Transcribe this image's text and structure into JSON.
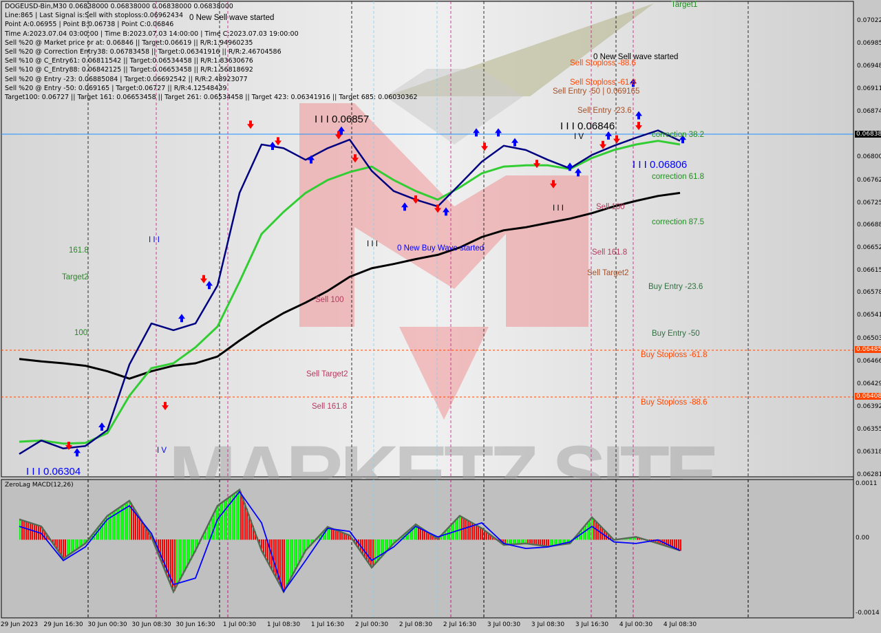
{
  "header": {
    "symbol_line": "DOGEUSD-Bin,M30  0.06838000 0.06838000 0.06838000 0.06838000",
    "info_lines": [
      "Line:865 | Last Signal is:Sell with stoploss:0.06962434",
      "Point A:0.06955 | Point B:0.06738 | Point C:0.06846",
      "Time A:2023.07.04 03:00:00 | Time B:2023.07.03 14:00:00 | Time C:2023.07.03 19:00:00",
      "Sell %20 @ Market price or at: 0.06846 || Target:0.06619 || R/R:1.94960235",
      "Sell %20 @ Correction Entry38: 0.06783458 || Target:0.06341916 || R/R:2.46704586",
      "Sell %10 @ C_Entry61: 0.06811542 || Target:0.06534458 || R/R:1.83630676",
      "Sell %10 @ C_Entry88: 0.06842125 || Target:0.06653458 || R/R:1.56818692",
      "Sell %20 @ Entry -23: 0.06885084 | Target:0.06692542 || R/R:2.48923077",
      "Sell %20 @ Entry -50: 0.069165 | Target:0.06727 || R/R:4.12548439",
      "Target100: 0.06727 || Target 161: 0.06653458 || Target 261: 0.06534458 || Target 423: 0.06341916 || Target 685: 0.06030362"
    ]
  },
  "annotations": {
    "sell_wave_1": "0 New Sell wave started",
    "target1": "Target1",
    "sell_wave_2": "0 New Sell wave started",
    "sell_sl_886": "Sell Stoploss -88.6",
    "sell_sl_618": "Sell Stoploss -61.8",
    "sell_entry_50": "Sell Entry -50 | 0.069165",
    "sell_entry_236": "Sell Entry -23.6",
    "wave_c": "I I I 0.06846",
    "wave_iv": "I V",
    "corr_382": "correction 38.2",
    "wave_b": "I I I 0.06806",
    "corr_618": "correction 61.8",
    "sell_100_r": "Sell 100",
    "corr_875": "correction 87.5",
    "sell_1618_r": "Sell 161.8",
    "sell_target2_r": "Sell Target2",
    "buy_entry_236": "Buy Entry -23.6",
    "buy_entry_50": "Buy Entry -50",
    "buy_sl_618": "Buy Stoploss -61.8",
    "buy_sl_886": "Buy Stoploss -88.6",
    "wave_a": "I I I 0.06857",
    "wave_iii_mid": "I I I",
    "buy_wave": "0 New Buy Wave started",
    "wave_iii_left": "I I I",
    "l_1618": "161.8",
    "l_target2": "Target2",
    "l_100": "100",
    "sell_100_m": "Sell 100",
    "sell_target2_m": "Sell Target2",
    "sell_1618_m": "Sell 161.8",
    "wave_low": "I I I 0.06304",
    "wave_iv_low": "I V",
    "wave_iii_right": "I I I",
    "watermark": "MARKETZ SITE"
  },
  "colors": {
    "fast_line": "#000080",
    "mid_line": "#32cd32",
    "slow_line": "#000000",
    "sell_arrow": "#ff0000",
    "buy_arrow": "#0000ff",
    "current_price": "#1e90ff",
    "stoploss_line": "#ff4500",
    "macd_up": "#00ff00",
    "macd_down": "#ff0000",
    "macd_signal": "#0000ff"
  },
  "chart_data": [
    {
      "type": "line",
      "title": "DOGEUSD-Bin,M30",
      "ylim": [
        0.06281,
        0.07022
      ],
      "price_ticks": [
        "0.07022",
        "0.06985",
        "0.06948",
        "0.06911",
        "0.06874",
        "0.06800",
        "0.06762",
        "0.06725",
        "0.06688",
        "0.06652",
        "0.06615",
        "0.06578",
        "0.06541",
        "0.06503",
        "0.06466",
        "0.06429",
        "0.06392",
        "0.06355",
        "0.06318",
        "0.06281"
      ],
      "current_price": "0.06838",
      "stoploss_levels": [
        "0.06485",
        "0.06408"
      ],
      "x": [
        "06-29 08:30",
        "06-29 12:30",
        "06-29 16:30",
        "06-29 20:30",
        "06-30 00:30",
        "06-30 04:30",
        "06-30 08:30",
        "06-30 12:30",
        "06-30 16:30",
        "06-30 20:30",
        "07-01 00:30",
        "07-01 04:30",
        "07-01 08:30",
        "07-01 12:30",
        "07-01 16:30",
        "07-01 20:30",
        "07-02 00:30",
        "07-02 04:30",
        "07-02 08:30",
        "07-02 12:30",
        "07-02 16:30",
        "07-02 20:30",
        "07-03 00:30",
        "07-03 04:30",
        "07-03 08:30",
        "07-03 12:30",
        "07-03 16:30",
        "07-03 20:30",
        "07-04 00:30",
        "07-04 04:30",
        "07-04 08:30"
      ],
      "series": [
        {
          "values": [
            0.06316,
            0.06338,
            0.06325,
            0.06329,
            0.06355,
            0.06462,
            0.06529,
            0.06518,
            0.06529,
            0.06591,
            0.06742,
            0.06821,
            0.06815,
            0.06796,
            0.06815,
            0.06829,
            0.06778,
            0.06745,
            0.06731,
            0.0672,
            0.06756,
            0.06793,
            0.06819,
            0.06812,
            0.06796,
            0.06782,
            0.06804,
            0.06819,
            0.06832,
            0.06844,
            0.06827
          ]
        },
        {
          "values": [
            0.06336,
            0.06338,
            0.06333,
            0.06334,
            0.0635,
            0.06411,
            0.06456,
            0.06464,
            0.0649,
            0.06524,
            0.06597,
            0.06675,
            0.06711,
            0.06742,
            0.06763,
            0.06776,
            0.06785,
            0.06763,
            0.06745,
            0.06731,
            0.06751,
            0.06774,
            0.06785,
            0.06787,
            0.06787,
            0.06781,
            0.06799,
            0.06812,
            0.06821,
            0.06827,
            0.06821
          ]
        },
        {
          "values": [
            0.06471,
            0.06467,
            0.06464,
            0.0646,
            0.06451,
            0.06439,
            0.06451,
            0.0646,
            0.06464,
            0.06475,
            0.06501,
            0.06525,
            0.06546,
            0.06563,
            0.06582,
            0.06605,
            0.06619,
            0.06626,
            0.06634,
            0.06641,
            0.06653,
            0.0667,
            0.06681,
            0.06686,
            0.06693,
            0.067,
            0.06709,
            0.0672,
            0.06729,
            0.06737,
            0.06742
          ]
        }
      ],
      "signals": [
        {
          "type": "sell",
          "time": "06-29 17:30",
          "price": 0.06327
        },
        {
          "type": "buy",
          "time": "06-29 19:00",
          "price": 0.06321
        },
        {
          "type": "buy",
          "time": "06-29 23:30",
          "price": 0.06363
        },
        {
          "type": "sell",
          "time": "06-30 11:00",
          "price": 0.06392
        },
        {
          "type": "buy",
          "time": "06-30 14:00",
          "price": 0.0654
        },
        {
          "type": "sell",
          "time": "06-30 18:00",
          "price": 0.06599
        },
        {
          "type": "buy",
          "time": "06-30 19:00",
          "price": 0.06594
        },
        {
          "type": "sell",
          "time": "07-01 02:30",
          "price": 0.06851
        },
        {
          "type": "buy",
          "time": "07-01 06:30",
          "price": 0.06821
        },
        {
          "type": "sell",
          "time": "07-01 07:30",
          "price": 0.06824
        },
        {
          "type": "buy",
          "time": "07-01 13:30",
          "price": 0.06799
        },
        {
          "type": "sell",
          "time": "07-01 18:30",
          "price": 0.06834
        },
        {
          "type": "buy",
          "time": "07-01 19:00",
          "price": 0.06846
        },
        {
          "type": "sell",
          "time": "07-01 21:30",
          "price": 0.06796
        },
        {
          "type": "buy",
          "time": "07-02 06:30",
          "price": 0.06722
        },
        {
          "type": "sell",
          "time": "07-02 08:30",
          "price": 0.06729
        },
        {
          "type": "sell",
          "time": "07-02 12:30",
          "price": 0.06714
        },
        {
          "type": "buy",
          "time": "07-02 14:00",
          "price": 0.06714
        },
        {
          "type": "buy",
          "time": "07-02 19:30",
          "price": 0.06843
        },
        {
          "type": "sell",
          "time": "07-02 21:00",
          "price": 0.06815
        },
        {
          "type": "buy",
          "time": "07-02 23:30",
          "price": 0.06843
        },
        {
          "type": "buy",
          "time": "07-03 02:30",
          "price": 0.06827
        },
        {
          "type": "sell",
          "time": "07-03 06:30",
          "price": 0.06787
        },
        {
          "type": "sell",
          "time": "07-03 09:30",
          "price": 0.06754
        },
        {
          "type": "buy",
          "time": "07-03 12:30",
          "price": 0.06787
        },
        {
          "type": "buy",
          "time": "07-03 14:00",
          "price": 0.06778
        },
        {
          "type": "sell",
          "time": "07-03 18:30",
          "price": 0.06818
        },
        {
          "type": "buy",
          "time": "07-03 19:30",
          "price": 0.06838
        },
        {
          "type": "sell",
          "time": "07-03 21:00",
          "price": 0.06827
        },
        {
          "type": "buy",
          "time": "07-04 00:00",
          "price": 0.06924
        },
        {
          "type": "buy",
          "time": "07-04 01:00",
          "price": 0.06871
        },
        {
          "type": "sell",
          "time": "07-04 01:00",
          "price": 0.06849
        },
        {
          "type": "buy",
          "time": "07-04 09:00",
          "price": 0.06832
        }
      ],
      "time_ticks": [
        {
          "label": "29 Jun 2023",
          "time": "06-29 08:30"
        },
        {
          "label": "29 Jun 16:30",
          "time": "06-29 16:30"
        },
        {
          "label": "30 Jun 00:30",
          "time": "06-30 00:30"
        },
        {
          "label": "30 Jun 08:30",
          "time": "06-30 08:30"
        },
        {
          "label": "30 Jun 16:30",
          "time": "06-30 16:30"
        },
        {
          "label": "1 Jul 00:30",
          "time": "07-01 00:30"
        },
        {
          "label": "1 Jul 08:30",
          "time": "07-01 08:30"
        },
        {
          "label": "1 Jul 16:30",
          "time": "07-01 16:30"
        },
        {
          "label": "2 Jul 00:30",
          "time": "07-02 00:30"
        },
        {
          "label": "2 Jul 08:30",
          "time": "07-02 08:30"
        },
        {
          "label": "2 Jul 16:30",
          "time": "07-02 16:30"
        },
        {
          "label": "3 Jul 00:30",
          "time": "07-03 00:30"
        },
        {
          "label": "3 Jul 08:30",
          "time": "07-03 08:30"
        },
        {
          "label": "3 Jul 16:30",
          "time": "07-03 16:30"
        },
        {
          "label": "4 Jul 00:30",
          "time": "07-04 00:30"
        },
        {
          "label": "4 Jul 08:30",
          "time": "07-04 08:30"
        }
      ]
    },
    {
      "type": "bar",
      "title": "ZeroLag MACD(12,26)",
      "ylim": [
        -0.0014,
        0.0011
      ],
      "ticks": [
        "0.0011",
        "0.00",
        "-0.0014"
      ],
      "x_ref": "same as price chart",
      "macd": [
        0.0004,
        0.00026,
        -0.00038,
        -8e-05,
        0.00047,
        0.00077,
        5e-05,
        -0.00104,
        -0.00022,
        0.00067,
        0.00099,
        -0.00022,
        -0.00104,
        -0.00022,
        0.00025,
        8e-05,
        -0.00056,
        -8e-05,
        0.0003,
        1e-05,
        0.00047,
        0.00022,
        -0.00011,
        -8e-05,
        -0.00014,
        -8e-05,
        0.00044,
        -1e-05,
        5e-05,
        -8e-05,
        -0.00022
      ],
      "signal": [
        0.00026,
        0.00012,
        -0.00042,
        -0.00015,
        0.0004,
        0.00067,
        0.00012,
        -0.0009,
        -0.00077,
        0.0004,
        0.00095,
        0.00033,
        -0.00104,
        -0.00042,
        0.00022,
        0.00016,
        -0.00042,
        -0.00015,
        0.00026,
        5e-05,
        0.00019,
        0.00033,
        -8e-05,
        -0.00018,
        -0.00015,
        -5e-05,
        0.00026,
        -5e-05,
        -8e-05,
        -1e-05,
        -0.00022
      ]
    }
  ]
}
